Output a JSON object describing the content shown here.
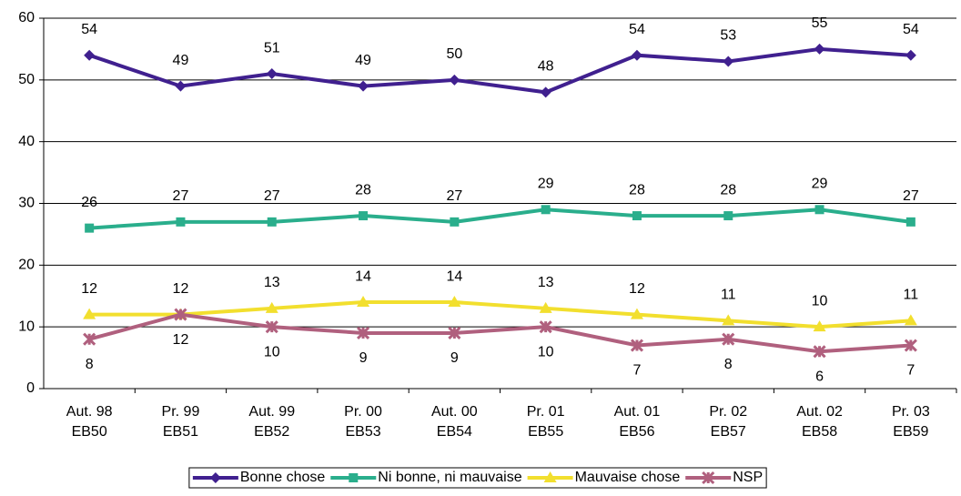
{
  "chart_data": {
    "type": "line",
    "categories": [
      [
        "Aut. 98",
        "EB50"
      ],
      [
        "Pr. 99",
        "EB51"
      ],
      [
        "Aut. 99",
        "EB52"
      ],
      [
        "Pr. 00",
        "EB53"
      ],
      [
        "Aut. 00",
        "EB54"
      ],
      [
        "Pr. 01",
        "EB55"
      ],
      [
        "Aut. 01",
        "EB56"
      ],
      [
        "Pr. 02",
        "EB57"
      ],
      [
        "Aut. 02",
        "EB58"
      ],
      [
        "Pr. 03",
        "EB59"
      ]
    ],
    "series": [
      {
        "name": "Bonne chose",
        "color": "#40208f",
        "marker": "diamond",
        "label_position": "above",
        "values": [
          54,
          49,
          51,
          49,
          50,
          48,
          54,
          53,
          55,
          54
        ]
      },
      {
        "name": "Ni bonne, ni mauvaise",
        "color": "#2aae8c",
        "marker": "square",
        "label_position": "above",
        "values": [
          26,
          27,
          27,
          28,
          27,
          29,
          28,
          28,
          29,
          27
        ]
      },
      {
        "name": "Mauvaise chose",
        "color": "#f2df2e",
        "marker": "triangle",
        "label_position": "above",
        "values": [
          12,
          12,
          13,
          14,
          14,
          13,
          12,
          11,
          10,
          11
        ]
      },
      {
        "name": "NSP",
        "color": "#b0607e",
        "marker": "star",
        "label_position": "below",
        "values": [
          8,
          12,
          10,
          9,
          9,
          10,
          7,
          8,
          6,
          7
        ]
      }
    ],
    "ylim": [
      0,
      60
    ],
    "yticks": [
      0,
      10,
      20,
      30,
      40,
      50,
      60
    ],
    "grid": true,
    "legend": "bottom"
  }
}
